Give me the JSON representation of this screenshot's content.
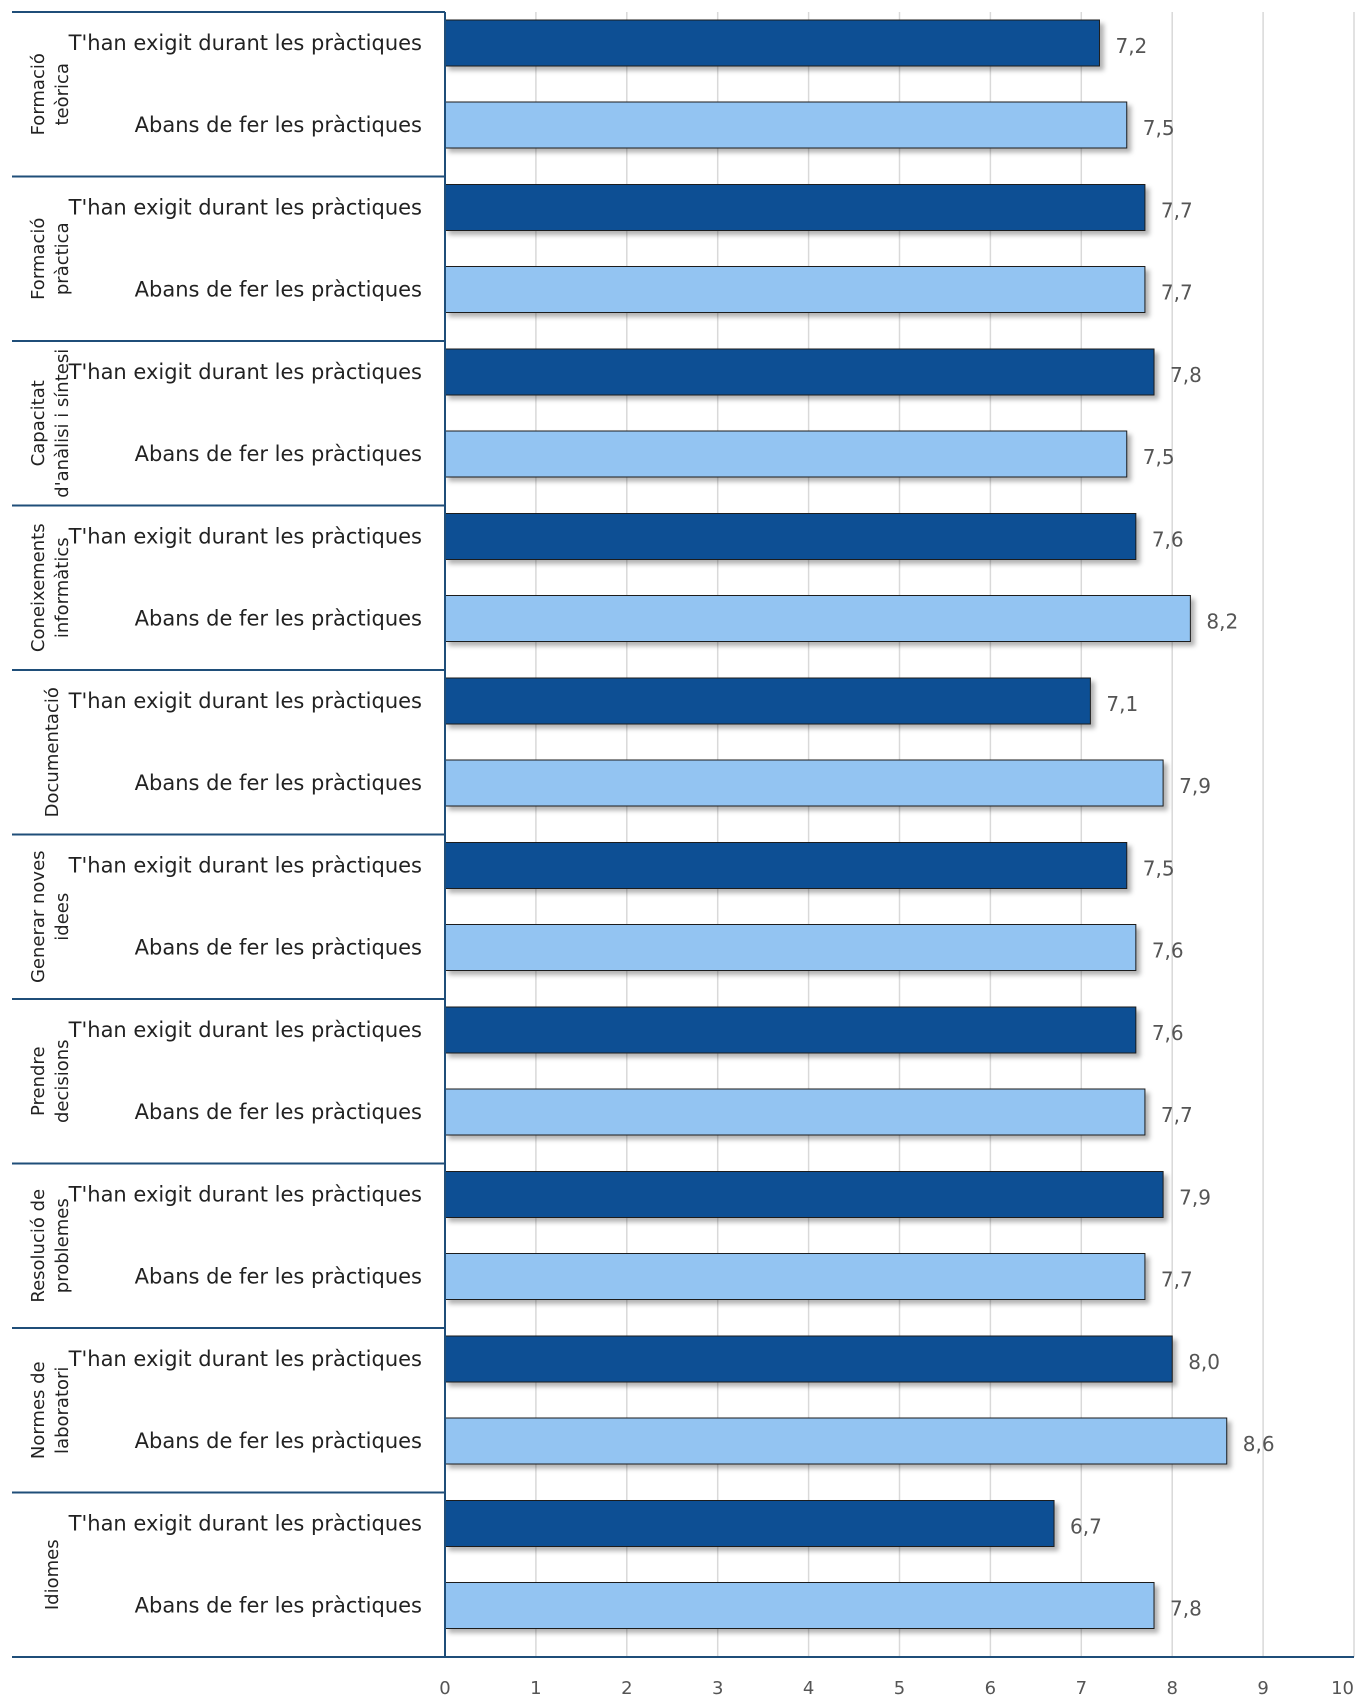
{
  "chart_data": {
    "type": "bar",
    "orientation": "horizontal",
    "xlim": [
      0,
      10
    ],
    "x_ticks": [
      "0",
      "1",
      "2",
      "3",
      "4",
      "5",
      "6",
      "7",
      "8",
      "9",
      "10"
    ],
    "grid": true,
    "series": [
      {
        "name": "T'han exigit durant les pràctiques",
        "color": "#0d5094"
      },
      {
        "name": "Abans de fer les pràctiques",
        "color": "#93c4f2"
      }
    ],
    "groups": [
      {
        "lines": [
          "Formació",
          "teòrica"
        ],
        "values": [
          7.2,
          7.5
        ],
        "labels": [
          "7,2",
          "7,5"
        ]
      },
      {
        "lines": [
          "Formació",
          "pràctica"
        ],
        "values": [
          7.7,
          7.7
        ],
        "labels": [
          "7,7",
          "7,7"
        ]
      },
      {
        "lines": [
          "Capacitat",
          "d'anàlisi i síntesi"
        ],
        "values": [
          7.8,
          7.5
        ],
        "labels": [
          "7,8",
          "7,5"
        ]
      },
      {
        "lines": [
          "Coneixements",
          "informàtics"
        ],
        "values": [
          7.6,
          8.2
        ],
        "labels": [
          "7,6",
          "8,2"
        ]
      },
      {
        "lines": [
          "Documentació"
        ],
        "values": [
          7.1,
          7.9
        ],
        "labels": [
          "7,1",
          "7,9"
        ]
      },
      {
        "lines": [
          "Generar noves",
          "idees"
        ],
        "values": [
          7.5,
          7.6
        ],
        "labels": [
          "7,5",
          "7,6"
        ]
      },
      {
        "lines": [
          "Prendre",
          "decisions"
        ],
        "values": [
          7.6,
          7.7
        ],
        "labels": [
          "7,6",
          "7,7"
        ]
      },
      {
        "lines": [
          "Resolució de",
          "problemes"
        ],
        "values": [
          7.9,
          7.7
        ],
        "labels": [
          "7,9",
          "7,7"
        ]
      },
      {
        "lines": [
          "Normes de",
          "laboratori"
        ],
        "values": [
          8.0,
          8.6
        ],
        "labels": [
          "8,0",
          "8,6"
        ]
      },
      {
        "lines": [
          "Idiomes"
        ],
        "values": [
          6.7,
          7.8
        ],
        "labels": [
          "6,7",
          "7,8"
        ]
      }
    ]
  }
}
